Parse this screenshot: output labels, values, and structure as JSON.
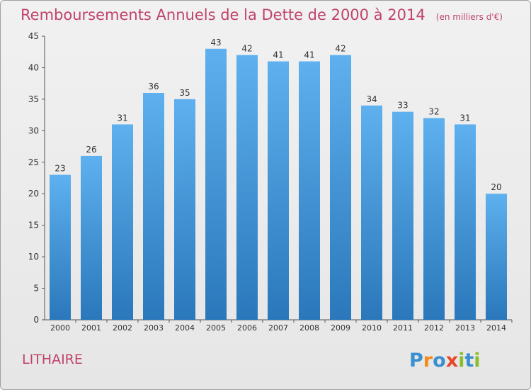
{
  "header": {
    "title": "Remboursements Annuels de la Dette de 2000 à 2014",
    "subtitle": "(en milliers d'€)"
  },
  "footer": {
    "commune": "LITHAIRE",
    "brand": "Proxiti"
  },
  "colors": {
    "bar_top": "#5eb0ee",
    "bar_bottom": "#2a78bb",
    "title": "#c0446a"
  },
  "chart_data": {
    "type": "bar",
    "title": "Remboursements Annuels de la Dette de 2000 à 2014",
    "subtitle": "(en milliers d'€)",
    "xlabel": "",
    "ylabel": "",
    "categories": [
      "2000",
      "2001",
      "2002",
      "2003",
      "2004",
      "2005",
      "2006",
      "2007",
      "2008",
      "2009",
      "2010",
      "2011",
      "2012",
      "2013",
      "2014"
    ],
    "values": [
      23,
      26,
      31,
      36,
      35,
      43,
      42,
      41,
      41,
      42,
      34,
      33,
      32,
      31,
      20
    ],
    "ylim": [
      0,
      45
    ],
    "yticks": [
      0,
      5,
      10,
      15,
      20,
      25,
      30,
      35,
      40,
      45
    ],
    "grid": false,
    "legend": "none"
  }
}
